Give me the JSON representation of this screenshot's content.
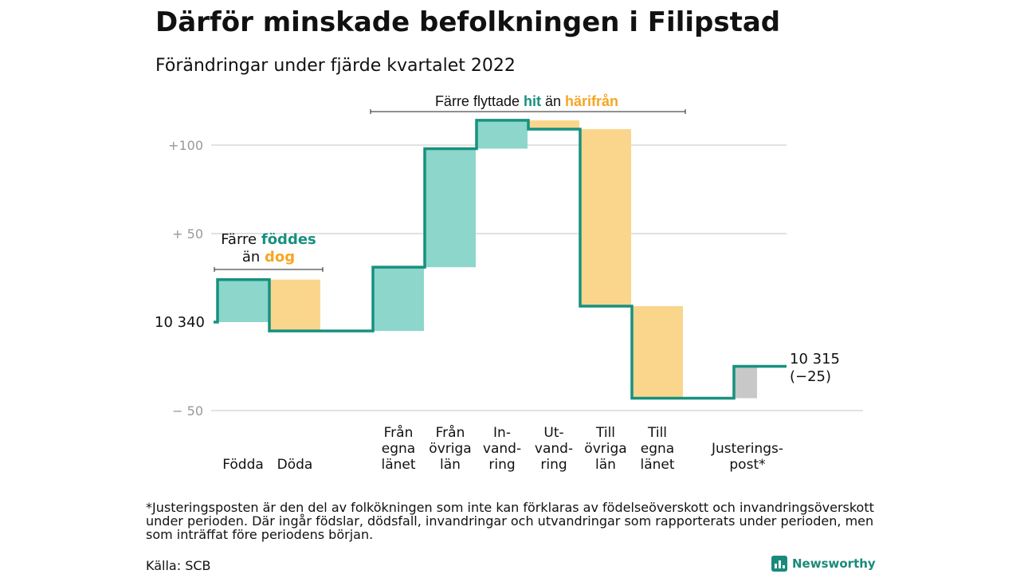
{
  "title": "Därför minskade befolkningen i Filipstad",
  "subtitle": "Förändringar under fjärde kvartalet 2022",
  "footnote": "*Justeringsposten är den del av folkökningen som inte kan förklaras av födelseöverskott och invandringsöverskott under perioden. Där ingår födslar, dödsfall, invandringar och utvandringar som rapporterats under perioden, men som inträffat före periodens början.",
  "source": "Källa: SCB",
  "brand": "Newsworthy",
  "chart_data": {
    "type": "bar",
    "subtype": "waterfall",
    "start": {
      "label": "10 340",
      "value": 10340
    },
    "end": {
      "label": "10 315",
      "change_label": "(−25)",
      "value": 10315
    },
    "y_ticks": [
      "+100",
      "+ 50",
      "− 50"
    ],
    "y_tick_values": [
      100,
      50,
      -50
    ],
    "ylim": [
      -55,
      115
    ],
    "grid": true,
    "categories": [
      {
        "lines": [
          "Födda"
        ],
        "value": 24,
        "kind": "inflow"
      },
      {
        "lines": [
          "Döda"
        ],
        "value": -29,
        "kind": "outflow"
      },
      {
        "lines": [
          "Från",
          "egna",
          "länet"
        ],
        "value": 36,
        "kind": "inflow"
      },
      {
        "lines": [
          "Från",
          "övriga",
          "län"
        ],
        "value": 67,
        "kind": "inflow"
      },
      {
        "lines": [
          "In-",
          "vand-",
          "ring"
        ],
        "value": 16,
        "kind": "inflow"
      },
      {
        "lines": [
          "Ut-",
          "vand-",
          "ring"
        ],
        "value": -5,
        "kind": "outflow"
      },
      {
        "lines": [
          "Till",
          "övriga",
          "län"
        ],
        "value": -100,
        "kind": "outflow"
      },
      {
        "lines": [
          "Till",
          "egna",
          "länet"
        ],
        "value": -52,
        "kind": "outflow"
      },
      {
        "lines": [
          "Justerings-",
          "post*"
        ],
        "value": 18,
        "kind": "adjustment"
      }
    ],
    "annotations": [
      {
        "parts": [
          "Färre ",
          "födde",
          "s",
          "än ",
          "dog"
        ],
        "line2_start": 3
      },
      {
        "parts": [
          "Färre flyttade ",
          "hit",
          " än ",
          "härifrån"
        ]
      }
    ],
    "colors": {
      "inflow": "#8dd6cb",
      "outflow": "#fad68d",
      "adjustment": "#c8c8c8",
      "line": "#17917f",
      "teal_text": "#17917f",
      "orange_text": "#f5a623",
      "grid": "#d9d9d9",
      "tick": "#999999"
    }
  }
}
